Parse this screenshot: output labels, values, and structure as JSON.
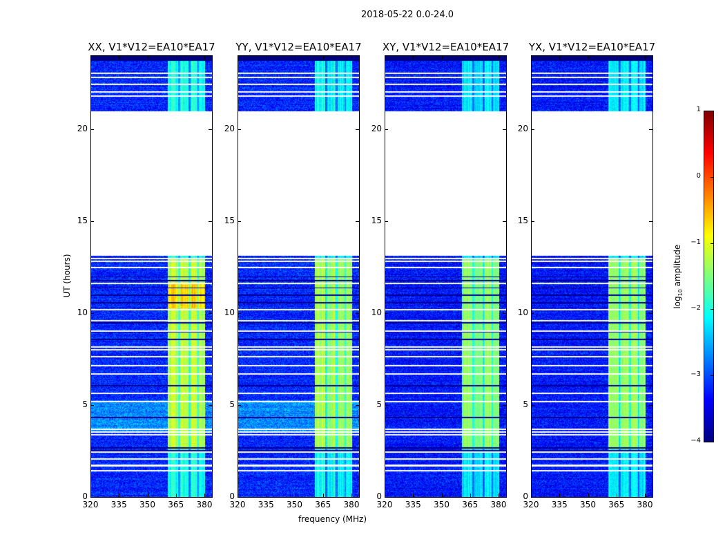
{
  "chart_data": {
    "type": "heatmap",
    "title": "2018-05-22 0.0-24.0",
    "xlabel": "frequency (MHz)",
    "ylabel": "UT (hours)",
    "xlim": [
      320,
      384
    ],
    "ylim": [
      0,
      24
    ],
    "x_ticks": [
      320,
      335,
      350,
      365,
      380
    ],
    "y_ticks": [
      0,
      5,
      10,
      15,
      20
    ],
    "panels": [
      {
        "title": "XX, V1*V12=EA10*EA17",
        "band_level": -1.2,
        "background_level": -3.2
      },
      {
        "title": "YY, V1*V12=EA10*EA17",
        "band_level": -1.3,
        "background_level": -3.2
      },
      {
        "title": "XY, V1*V12=EA10*EA17",
        "band_level": -1.4,
        "background_level": -3.3
      },
      {
        "title": "YX, V1*V12=EA10*EA17",
        "band_level": -1.4,
        "background_level": -3.3
      }
    ],
    "data_time_ranges_h": [
      [
        0,
        13.15
      ],
      [
        21.0,
        24.0
      ]
    ],
    "bright_band_MHz": [
      360.5,
      380
    ],
    "flagged_times_h": [
      1.46,
      1.73,
      2.1,
      2.45,
      3.41,
      3.56,
      3.71,
      5.2,
      5.67,
      6.7,
      7.17,
      7.65,
      8.03,
      8.18,
      9.04,
      9.6,
      10.2,
      11.63,
      12.5,
      12.83,
      13.0,
      21.84,
      22.06,
      22.47,
      22.85,
      23.08
    ],
    "low_times_h": [
      2.55,
      2.7,
      4.35,
      6.08,
      8.6,
      9.0,
      9.5,
      10.6,
      11.0,
      11.4,
      11.8,
      12.0,
      23.8,
      23.9
    ],
    "colorbar": {
      "label": "log₁₀ amplitude",
      "colormap": "jet",
      "range": [
        -4,
        1
      ],
      "ticks": [
        1,
        0,
        -1,
        -2,
        -3,
        -4
      ],
      "tick_labels": [
        "1",
        "0",
        "−1",
        "−2",
        "−3",
        "−4"
      ]
    },
    "colors": {
      "axes": "#000000",
      "flagged": "#ffffff"
    }
  }
}
